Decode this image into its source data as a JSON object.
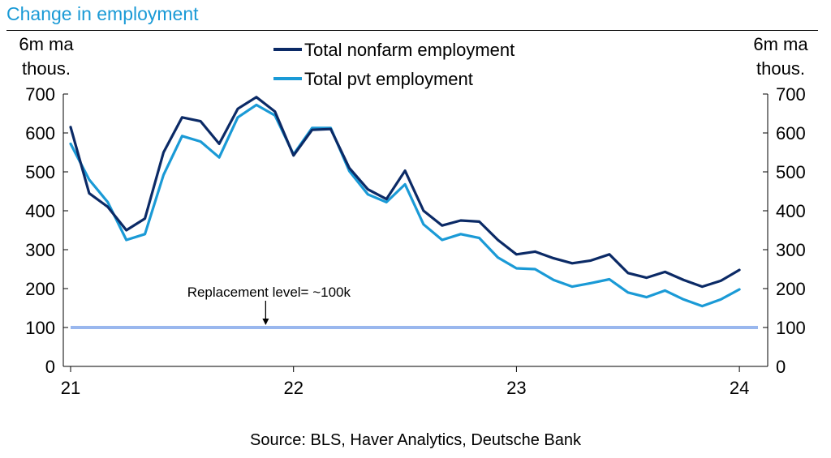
{
  "header": {
    "title": "Change in employment",
    "y_unit_left": [
      "6m ma",
      "thous."
    ],
    "y_unit_right": [
      "6m ma",
      "thous."
    ]
  },
  "footer": {
    "source": "Source: BLS, Haver Analytics, Deutsche Bank"
  },
  "chart_data": {
    "type": "line",
    "title": "Change in employment",
    "ylabel": "6m ma thous.",
    "ylim": [
      0,
      700
    ],
    "yticks": [
      0,
      100,
      200,
      300,
      400,
      500,
      600,
      700
    ],
    "xticks": [
      {
        "label": "21",
        "pos": 0
      },
      {
        "label": "22",
        "pos": 12
      },
      {
        "label": "23",
        "pos": 24
      },
      {
        "label": "24",
        "pos": 36
      }
    ],
    "x_start_index": 0,
    "x_end_index": 37,
    "grid": false,
    "legend_position": "top-center",
    "series": [
      {
        "name": "Total nonfarm employment",
        "color": "#0b2a66",
        "values": [
          615,
          445,
          410,
          350,
          380,
          550,
          640,
          630,
          572,
          662,
          692,
          655,
          542,
          608,
          610,
          510,
          455,
          430,
          503,
          400,
          362,
          375,
          372,
          325,
          288,
          295,
          278,
          265,
          272,
          288,
          240,
          228,
          243,
          222,
          205,
          220,
          248
        ]
      },
      {
        "name": "Total pvt employment",
        "color": "#1a9ad6",
        "values": [
          572,
          480,
          422,
          325,
          340,
          492,
          592,
          578,
          537,
          640,
          672,
          645,
          545,
          613,
          613,
          502,
          442,
          422,
          468,
          365,
          325,
          340,
          330,
          280,
          252,
          250,
          222,
          205,
          214,
          224,
          190,
          178,
          195,
          172,
          155,
          172,
          198
        ]
      }
    ],
    "reference_line": {
      "value": 100,
      "color": "#99b7ee",
      "annotation": "Replacement level= ~100k",
      "annotation_x": 10.5
    }
  }
}
